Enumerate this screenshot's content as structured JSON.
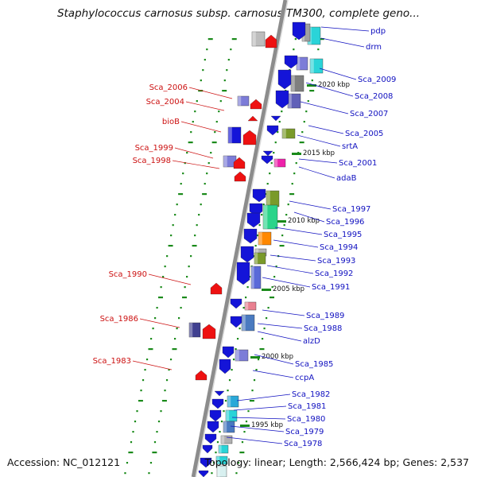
{
  "title": "Staphylococcus carnosus subsp. carnosus TM300, complete geno...",
  "footer": {
    "accession": "Accession: NC_012121",
    "summary": "Topology: linear; Length: 2,566,424 bp; Genes: 2,537"
  },
  "colors": {
    "backbone": "#8c8c8c",
    "forward_arrow": "#1414d8",
    "reverse_arrow": "#ee1111",
    "tick": "#1a8a1a",
    "right_label": "#1010c0",
    "left_label": "#cc1111"
  },
  "scale_labels": [
    "2020 kbp",
    "2015 kbp",
    "2010 kbp",
    "2005 kbp",
    "2000 kbp",
    "1995 kbp"
  ],
  "right_genes": [
    "pdp",
    "drm",
    "Sca_2009",
    "Sca_2008",
    "Sca_2007",
    "Sca_2005",
    "srtA",
    "Sca_2001",
    "adaB",
    "Sca_1997",
    "Sca_1996",
    "Sca_1995",
    "Sca_1994",
    "Sca_1993",
    "Sca_1992",
    "Sca_1991",
    "Sca_1989",
    "Sca_1988",
    "alzD",
    "Sca_1985",
    "ccpA",
    "Sca_1982",
    "Sca_1981",
    "Sca_1980",
    "Sca_1979",
    "Sca_1978"
  ],
  "left_genes": [
    "Sca_2006",
    "Sca_2004",
    "bioB",
    "Sca_1999",
    "Sca_1998",
    "Sca_1990",
    "Sca_1986",
    "Sca_1983"
  ]
}
